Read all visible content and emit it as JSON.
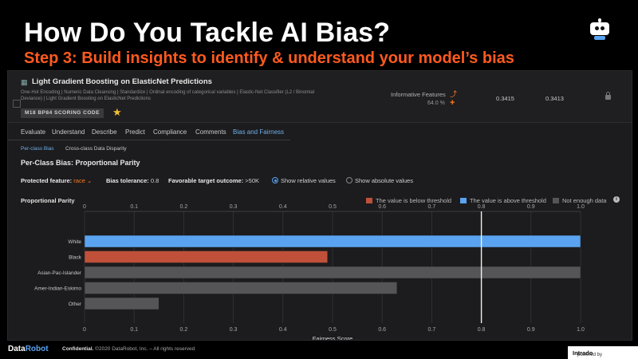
{
  "slide": {
    "title": "How Do You Tackle AI Bias?",
    "subtitle": "Step 3: Build insights to identify & understand your model’s bias"
  },
  "model": {
    "name": "Light Gradient Boosting on ElasticNet Predictions",
    "description": "One-Hot Encoding | Numeric Data Cleansing | Standardize | Ordinal encoding of categorical variables | Elastic-Net Classifier (L2 / Binomial Deviance) | Light Gradient Boosting on ElasticNet Predictions",
    "badge": "M18  BP84  SCORING CODE",
    "informative_features_label": "Informative Features",
    "informative_features_pct": "64.0 %",
    "score_1": "0.3415",
    "score_2": "0.3413"
  },
  "tabs": [
    "Evaluate",
    "Understand",
    "Describe",
    "Predict",
    "Compliance",
    "Comments",
    "Bias and Fairness"
  ],
  "active_tab": "Bias and Fairness",
  "subtabs": [
    "Per-class Bias",
    "Cross-class Data Disparity"
  ],
  "section_title": "Per-Class Bias: Proportional Parity",
  "controls": {
    "protected_label": "Protected feature:",
    "protected_value": "race",
    "tolerance_label": "Bias tolerance:",
    "tolerance_value": "0.8",
    "target_label": "Favorable target outcome:",
    "target_value": ">50K",
    "relative_label": "Show relative values",
    "absolute_label": "Show absolute values",
    "selected_view": "relative"
  },
  "chart_title": "Proportional Parity",
  "legend": [
    {
      "label": "The value is below threshold",
      "color": "#c0503a"
    },
    {
      "label": "The value is above threshold",
      "color": "#5aa3f0"
    },
    {
      "label": "Not enough data",
      "color": "#555557"
    }
  ],
  "chart_data": {
    "type": "bar",
    "orientation": "horizontal",
    "title": "Proportional Parity",
    "xlabel": "Fairness Score",
    "categories": [
      "White",
      "Black",
      "Asian-Pac-Islander",
      "Amer-Indian-Eskimo",
      "Other"
    ],
    "values": [
      1.0,
      0.49,
      1.0,
      0.63,
      0.15
    ],
    "status": [
      "above",
      "below",
      "not_enough_data",
      "not_enough_data",
      "not_enough_data"
    ],
    "xlim": [
      0,
      1.0
    ],
    "ticks": [
      "0",
      "0.1",
      "0.2",
      "0.3",
      "0.4",
      "0.5",
      "0.6",
      "0.7",
      "0.8",
      "0.9",
      "1.0"
    ],
    "threshold": 0.8,
    "grid": true
  },
  "footer": {
    "logo_data": "Data",
    "logo_robot": "Robot",
    "confidential": "Confidential.",
    "copyright": "©2020 DataRobot, Inc. – All rights reserved",
    "powered_by": "powered by",
    "powered_brand": "Intrado"
  }
}
